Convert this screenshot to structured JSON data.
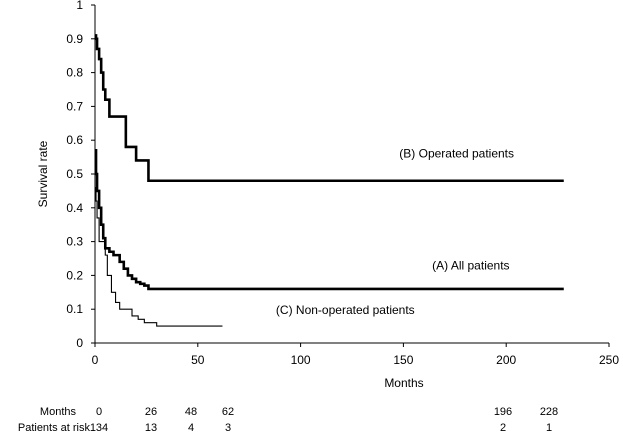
{
  "chart_data": {
    "type": "line",
    "title": "",
    "xlabel": "Months",
    "ylabel": "Survival rate",
    "xlim": [
      0,
      250
    ],
    "ylim": [
      0,
      1
    ],
    "x_ticks": [
      "0",
      "50",
      "100",
      "150",
      "200",
      "250"
    ],
    "y_ticks": [
      "0",
      "0.1",
      "0.2",
      "0.3",
      "0.4",
      "0.5",
      "0.6",
      "0.7",
      "0.8",
      "0.9",
      "1"
    ],
    "grid": false,
    "legend": "none",
    "series": [
      {
        "name": "(B) Operated patients",
        "style": "thick",
        "x": [
          0,
          0.5,
          1,
          2,
          3,
          4,
          5,
          7,
          9,
          15,
          20,
          26,
          228
        ],
        "y": [
          0.91,
          0.9,
          0.87,
          0.84,
          0.8,
          0.75,
          0.72,
          0.67,
          0.67,
          0.58,
          0.54,
          0.48,
          0.48
        ]
      },
      {
        "name": "(A) All patients",
        "style": "thick",
        "x": [
          0,
          0.5,
          1,
          2,
          3,
          4,
          5,
          7,
          9,
          12,
          14,
          16,
          18,
          20,
          22,
          24,
          26,
          228
        ],
        "y": [
          0.57,
          0.5,
          0.45,
          0.4,
          0.35,
          0.31,
          0.28,
          0.27,
          0.26,
          0.24,
          0.22,
          0.2,
          0.19,
          0.18,
          0.175,
          0.17,
          0.16,
          0.16
        ]
      },
      {
        "name": "(C) Non-operated patients",
        "style": "thin",
        "x": [
          0,
          0.5,
          1,
          2,
          4,
          5,
          6,
          8,
          10,
          12,
          15,
          18,
          21,
          24,
          30,
          40,
          62
        ],
        "y": [
          0.46,
          0.42,
          0.37,
          0.3,
          0.3,
          0.26,
          0.2,
          0.15,
          0.12,
          0.1,
          0.1,
          0.08,
          0.07,
          0.06,
          0.05,
          0.05,
          0.05
        ]
      }
    ],
    "annotations": [
      {
        "text": "(B) Operated patients",
        "x": 148,
        "y": 0.56
      },
      {
        "text": "(A) All patients",
        "x": 164,
        "y": 0.23
      },
      {
        "text": "(C) Non-operated patients",
        "x": 88,
        "y": 0.097
      }
    ],
    "risk_table": {
      "row1_label": "Months",
      "row2_label": "Patients at risk",
      "months": [
        "0",
        "26",
        "48",
        "62",
        "196",
        "228"
      ],
      "at_risk": [
        "134",
        "13",
        "4",
        "3",
        "2",
        "1"
      ]
    }
  }
}
